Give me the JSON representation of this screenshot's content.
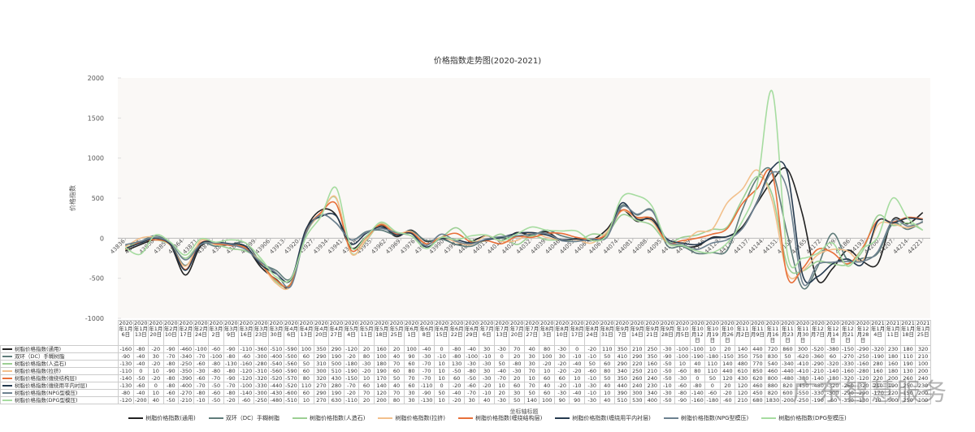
{
  "chart_data": {
    "type": "line",
    "title": "价格指数走势图(2020-2021)",
    "y_label": "价格指数",
    "x_label": "坐标轴标题",
    "watermark": "广东智慧服务",
    "ylim": [
      -1000,
      2000
    ],
    "yticks": [
      -1000,
      -500,
      0,
      500,
      1000,
      1500,
      2000
    ],
    "xlim": [
      43836,
      44221
    ],
    "xticks": [
      43836,
      43843,
      43850,
      43857,
      43864,
      43871,
      43878,
      43885,
      43892,
      43899,
      43906,
      43913,
      43920,
      43927,
      43934,
      43941,
      43948,
      43955,
      43962,
      43969,
      43976,
      43983,
      43990,
      43997,
      44004,
      44011,
      44018,
      44025,
      44032,
      44039,
      44046,
      44053,
      44060,
      44067,
      44074,
      44081,
      44088,
      44095,
      44102,
      44109,
      44116,
      44123,
      44130,
      44137,
      44144,
      44151,
      44158,
      44165,
      44172,
      44179,
      44186,
      44193,
      44200,
      44207,
      44214,
      44221
    ],
    "categories": [
      "2020年1月6日",
      "2020年1月13日",
      "2020年1月20日",
      "2020年2月10日",
      "2020年2月17日",
      "2020年2月24日",
      "2020年3月2日",
      "2020年3月9日",
      "2020年3月16日",
      "2020年3月23日",
      "2020年3月30日",
      "2020年4月6日",
      "2020年4月13日",
      "2020年4月20日",
      "2020年4月27日",
      "2020年5月4日",
      "2020年5月11日",
      "2020年5月18日",
      "2020年5月25日",
      "2020年6月1日",
      "2020年6月8日",
      "2020年6月15日",
      "2020年6月22日",
      "2020年6月29日",
      "2020年7月6日",
      "2020年7月13日",
      "2020年7月20日",
      "2020年7月27日",
      "2020年8月3日",
      "2020年8月10日",
      "2020年8月17日",
      "2020年8月24日",
      "2020年8月31日",
      "2020年9月7日",
      "2020年9月14日",
      "2020年9月21日",
      "2020年9月28日",
      "2020年10月5日",
      "2020年10月12日",
      "2020年10月19日",
      "2020年10月26日",
      "2020年11月2日",
      "2020年11月9日",
      "2020年11月16日",
      "2020年11月23日",
      "2020年11月30日",
      "2020年12月7日",
      "2020年12月14日",
      "2020年12月21日",
      "2020年12月28日",
      "2021年1月4日",
      "2021年1月11日",
      "2021年1月18日",
      "2021年1月25日"
    ],
    "series": [
      {
        "name": "树脂价格指数(通用)",
        "color": "#222222",
        "values": [
          -160,
          -80,
          -20,
          -90,
          -460,
          -100,
          -60,
          -90,
          -110,
          -360,
          -510,
          -590,
          100,
          350,
          290,
          -120,
          20,
          160,
          20,
          100,
          -40,
          0,
          -80,
          -40,
          30,
          -30,
          70,
          40,
          80,
          -30,
          0,
          -20,
          110,
          350,
          210,
          250,
          -30,
          -100,
          -100,
          10,
          20,
          140,
          440,
          720,
          860,
          300,
          -520,
          -380,
          -150,
          -290,
          -320,
          230,
          180,
          320
        ]
      },
      {
        "name": "双环（DC）手糊树脂",
        "color": "#5f7c7a",
        "values": [
          -90,
          -40,
          30,
          -70,
          -340,
          -70,
          -100,
          -80,
          -60,
          -300,
          -400,
          -500,
          60,
          290,
          190,
          -20,
          80,
          100,
          40,
          90,
          -30,
          -10,
          -80,
          -100,
          -10,
          0,
          20,
          30,
          100,
          30,
          -10,
          -10,
          50,
          410,
          290,
          350,
          -90,
          -100,
          -190,
          -180,
          -150,
          350,
          750,
          830,
          50,
          -620,
          -360,
          60,
          -270,
          -250,
          -190,
          180,
          110,
          210
        ]
      },
      {
        "name": "树脂价格指数(人造石)",
        "color": "#9ccf94",
        "values": [
          -130,
          -40,
          -20,
          -80,
          -250,
          -60,
          -80,
          -130,
          -160,
          -280,
          -540,
          -560,
          50,
          310,
          500,
          -180,
          -30,
          180,
          70,
          60,
          -70,
          10,
          130,
          -30,
          -30,
          50,
          -80,
          30,
          -20,
          -20,
          -40,
          50,
          60,
          290,
          220,
          160,
          -50,
          10,
          40,
          110,
          140,
          480,
          770,
          540,
          -340,
          -410,
          -290,
          -320,
          -330,
          -160,
          280,
          160,
          190,
          100
        ]
      },
      {
        "name": "树脂价格指数(拉挤)",
        "color": "#f2c08c",
        "values": [
          -110,
          0,
          10,
          -90,
          -350,
          -30,
          -80,
          -80,
          -120,
          -310,
          -560,
          -590,
          60,
          300,
          510,
          -190,
          -20,
          190,
          60,
          80,
          -70,
          10,
          -50,
          -80,
          30,
          -40,
          -30,
          70,
          10,
          -20,
          -20,
          -60,
          80,
          340,
          250,
          210,
          -50,
          -60,
          80,
          110,
          440,
          610,
          850,
          460,
          -440,
          -410,
          -210,
          -140,
          -160,
          -280,
          160,
          180,
          130,
          200
        ]
      },
      {
        "name": "树脂价格指数(缠绕结构层)",
        "color": "#e8703a",
        "values": [
          -140,
          -50,
          -20,
          -80,
          -390,
          -60,
          -70,
          -90,
          -120,
          -320,
          -520,
          -570,
          80,
          320,
          430,
          -150,
          10,
          170,
          50,
          70,
          -70,
          10,
          60,
          -50,
          -30,
          -70,
          20,
          10,
          60,
          60,
          10,
          -10,
          50,
          350,
          260,
          240,
          -50,
          -30,
          0,
          50,
          120,
          430,
          620,
          800,
          -480,
          -380,
          -140,
          -180,
          -320,
          -120,
          220,
          200,
          260,
          240
        ]
      },
      {
        "name": "树脂价格指数(缠绕用平内衬层)",
        "color": "#253a4f",
        "values": [
          -130,
          -60,
          0,
          -80,
          -400,
          -70,
          -50,
          -70,
          -100,
          -330,
          -440,
          -520,
          110,
          270,
          280,
          -70,
          60,
          140,
          40,
          60,
          -110,
          0,
          -20,
          -60,
          -20,
          10,
          60,
          70,
          40,
          -20,
          -10,
          -30,
          40,
          440,
          240,
          230,
          -10,
          -60,
          -80,
          0,
          20,
          120,
          460,
          880,
          820,
          -450,
          -480,
          -320,
          -260,
          -320,
          210,
          190,
          250,
          230
        ]
      },
      {
        "name": "树脂价格指数(NPG型模压)",
        "color": "#6d8190",
        "values": [
          -80,
          -40,
          10,
          -60,
          -270,
          -80,
          -60,
          -80,
          -140,
          -300,
          -430,
          -600,
          60,
          290,
          190,
          -20,
          70,
          120,
          70,
          30,
          -90,
          50,
          -40,
          -70,
          -10,
          20,
          30,
          50,
          60,
          -30,
          -40,
          -10,
          10,
          390,
          300,
          340,
          -30,
          -80,
          -140,
          -60,
          -20,
          120,
          450,
          820,
          600,
          -550,
          -330,
          -300,
          -290,
          -290,
          -170,
          220,
          150,
          200
        ]
      },
      {
        "name": "树脂价格指数(DPG型模压)",
        "color": "#a6dca0",
        "values": [
          -120,
          -200,
          40,
          -50,
          -210,
          -10,
          -50,
          -20,
          -60,
          -250,
          -480,
          -510,
          10,
          270,
          630,
          -110,
          20,
          200,
          80,
          30,
          -130,
          10,
          -20,
          30,
          40,
          -30,
          50,
          140,
          100,
          90,
          90,
          -30,
          40,
          510,
          530,
          400,
          -50,
          -90,
          -160,
          -180,
          -60,
          210,
          680,
          1830,
          -200,
          -250,
          -190,
          -60,
          -350,
          -130,
          10,
          500,
          250,
          100
        ]
      }
    ]
  }
}
